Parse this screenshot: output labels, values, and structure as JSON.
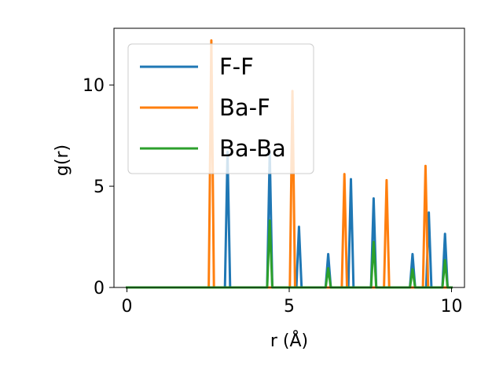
{
  "chart_data": {
    "type": "line",
    "title": "",
    "xlabel": "r (Å)",
    "ylabel": "g(r)",
    "xlim": [
      -0.4,
      10.4
    ],
    "ylim": [
      0,
      12.8
    ],
    "xticks": [
      0,
      5,
      10
    ],
    "yticks": [
      0,
      5,
      10
    ],
    "legend_position": "top-left",
    "grid": false,
    "peak_halfwidth": 0.08,
    "series": [
      {
        "name": "F-F",
        "color": "#1f77b4",
        "peaks": [
          [
            3.1,
            6.7
          ],
          [
            4.4,
            6.7
          ],
          [
            5.3,
            3.0
          ],
          [
            6.2,
            1.65
          ],
          [
            6.9,
            5.35
          ],
          [
            7.6,
            4.4
          ],
          [
            8.8,
            1.65
          ],
          [
            9.3,
            3.7
          ],
          [
            9.8,
            2.65
          ]
        ]
      },
      {
        "name": "Ba-F",
        "color": "#ff7f0e",
        "peaks": [
          [
            2.6,
            12.2
          ],
          [
            5.1,
            9.7
          ],
          [
            6.7,
            5.6
          ],
          [
            8.0,
            5.3
          ],
          [
            9.2,
            6.0
          ]
        ]
      },
      {
        "name": "Ba-Ba",
        "color": "#2ca02c",
        "peaks": [
          [
            4.4,
            3.3
          ],
          [
            6.2,
            0.95
          ],
          [
            7.6,
            2.25
          ],
          [
            8.8,
            0.9
          ],
          [
            9.8,
            1.35
          ]
        ]
      }
    ]
  }
}
